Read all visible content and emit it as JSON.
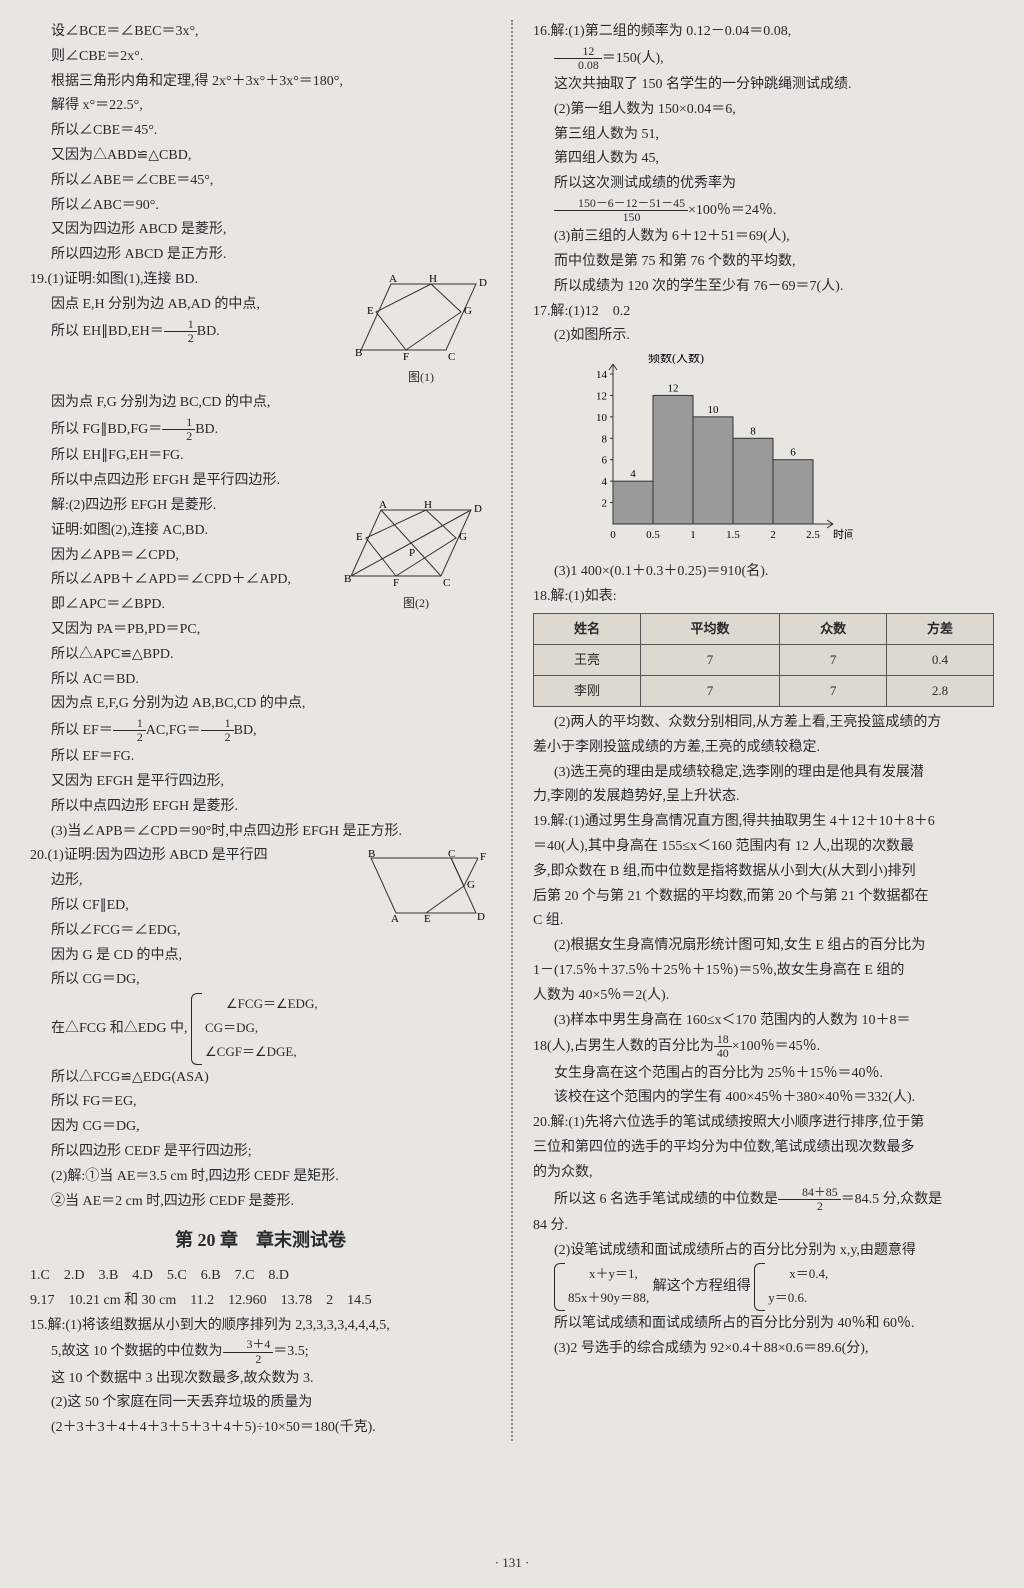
{
  "col1": {
    "p1": "设∠BCE＝∠BEC＝3x°,",
    "p2": "则∠CBE＝2x°.",
    "p3": "根据三角形内角和定理,得 2x°＋3x°＋3x°＝180°,",
    "p4": "解得 x°＝22.5°,",
    "p5": "所以∠CBE＝45°.",
    "p6": "又因为△ABD≌△CBD,",
    "p7": "所以∠ABE＝∠CBE＝45°,",
    "p8": "所以∠ABC＝90°.",
    "p9": "又因为四边形 ABCD 是菱形,",
    "p10": "所以四边形 ABCD 是正方形.",
    "q19_1a": "19.(1)证明:如图(1),连接 BD.",
    "q19_1b": "因点 E,H 分别为边 AB,AD 的中点,",
    "q19_1c_a": "所以 EH∥BD,EH＝",
    "q19_1c_b": "BD.",
    "q19_1d": "因为点 F,G 分别为边 BC,CD 的中点,",
    "q19_1e_a": "所以 FG∥BD,FG＝",
    "q19_1e_b": "BD.",
    "q19_1f": "所以 EH∥FG,EH＝FG.",
    "q19_1g": "所以中点四边形 EFGH 是平行四边形.",
    "q19_2a": "解:(2)四边形 EFGH 是菱形.",
    "q19_2b": "证明:如图(2),连接 AC,BD.",
    "q19_2c": "因为∠APB＝∠CPD,",
    "q19_2d": "所以∠APB＋∠APD＝∠CPD＋∠APD,",
    "q19_2e": "即∠APC＝∠BPD.",
    "q19_2f": "又因为 PA＝PB,PD＝PC,",
    "q19_2g": "所以△APC≌△BPD.",
    "q19_2h": "所以 AC＝BD.",
    "q19_2i": "因为点 E,F,G 分别为边 AB,BC,CD 的中点,",
    "q19_2j_a": "所以 EF＝",
    "q19_2j_b": "AC,FG＝",
    "q19_2j_c": "BD,",
    "q19_2k": "所以 EF＝FG.",
    "q19_2l": "又因为 EFGH 是平行四边形,",
    "q19_2m": "所以中点四边形 EFGH 是菱形.",
    "q19_3": "(3)当∠APB＝∠CPD＝90°时,中点四边形 EFGH 是正方形.",
    "q20_1a": "20.(1)证明:因为四边形 ABCD 是平行四",
    "q20_1b": "边形,",
    "q20_1c": "所以 CF∥ED,",
    "q20_1d": "所以∠FCG＝∠EDG,",
    "q20_1e": "因为 G 是 CD 的中点,",
    "q20_1f": "所以 CG＝DG,",
    "q20_1g": "在△FCG 和△EDG 中,",
    "q20_1g_b1": "∠FCG＝∠EDG,",
    "q20_1g_b2": "CG＝DG,",
    "q20_1g_b3": "∠CGF＝∠DGE,",
    "q20_1h": "所以△FCG≌△EDG(ASA)",
    "q20_1i": "所以 FG＝EG,",
    "q20_1j": "因为 CG＝DG,",
    "q20_1k": "所以四边形 CEDF 是平行四边形;",
    "q20_2a": "(2)解:①当 AE＝3.5 cm 时,四边形 CEDF 是矩形.",
    "q20_2b": "②当 AE＝2 cm 时,四边形 CEDF 是菱形.",
    "chapter_title": "第 20 章　章末测试卷",
    "answers1": "1.C　2.D　3.B　4.D　5.C　6.B　7.C　8.D",
    "answers2": "9.17　10.21 cm 和 30 cm　11.2　12.960　13.78　2　14.5",
    "q15_1a": "15.解:(1)将该组数据从小到大的顺序排列为 2,3,3,3,3,4,4,4,5,",
    "q15_1b_a": "5,故这 10 个数据的中位数为",
    "q15_1b_b": "＝3.5;",
    "q15_1c": "这 10 个数据中 3 出现次数最多,故众数为 3.",
    "q15_2a": "(2)这 50 个家庭在同一天丢弃垃圾的质量为",
    "q15_2b": "(2＋3＋3＋4＋4＋3＋5＋3＋4＋5)÷10×50＝180(千克).",
    "fig1_label": "图(1)",
    "fig2_label": "图(2)"
  },
  "col2": {
    "q16_1a": "16.解:(1)第二组的频率为 0.12－0.04＝0.08,",
    "q16_1b_b": "＝150(人),",
    "q16_1c": "这次共抽取了 150 名学生的一分钟跳绳测试成绩.",
    "q16_2a": "(2)第一组人数为 150×0.04＝6,",
    "q16_2b": "第三组人数为 51,",
    "q16_2c": "第四组人数为 45,",
    "q16_2d": "所以这次测试成绩的优秀率为",
    "q16_2e_b": "×100％＝24％.",
    "q16_3a": "(3)前三组的人数为 6＋12＋51＝69(人),",
    "q16_3b": "而中位数是第 75 和第 76 个数的平均数,",
    "q16_3c": "所以成绩为 120 次的学生至少有 76－69＝7(人).",
    "q17_1": "17.解:(1)12　0.2",
    "q17_2": "(2)如图所示.",
    "chart_ylabel": "频数(人数)",
    "chart_xlabel": "时间(小时)",
    "q17_3": "(3)1 400×(0.1＋0.3＋0.25)＝910(名).",
    "q18_1": "18.解:(1)如表:",
    "table": {
      "headers": [
        "姓名",
        "平均数",
        "众数",
        "方差"
      ],
      "rows": [
        [
          "王亮",
          "7",
          "7",
          "0.4"
        ],
        [
          "李刚",
          "7",
          "7",
          "2.8"
        ]
      ]
    },
    "q18_2a": "(2)两人的平均数、众数分别相同,从方差上看,王亮投篮成绩的方",
    "q18_2b": "差小于李刚投篮成绩的方差,王亮的成绩较稳定.",
    "q18_3a": "(3)选王亮的理由是成绩较稳定,选李刚的理由是他具有发展潜",
    "q18_3b": "力,李刚的发展趋势好,呈上升状态.",
    "q19_1a": "19.解:(1)通过男生身高情况直方图,得共抽取男生 4＋12＋10＋8＋6",
    "q19_1b": "＝40(人),其中身高在 155≤x＜160 范围内有 12 人,出现的次数最",
    "q19_1c": "多,即众数在 B 组,而中位数是指将数据从小到大(从大到小)排列",
    "q19_1d": "后第 20 个与第 21 个数据的平均数,而第 20 个与第 21 个数据都在",
    "q19_1e": "C 组.",
    "q19_2a": "(2)根据女生身高情况扇形统计图可知,女生 E 组占的百分比为",
    "q19_2b": "1－(17.5％＋37.5％＋25％＋15％)＝5％,故女生身高在 E 组的",
    "q19_2c": "人数为 40×5％＝2(人).",
    "q19_3a": "(3)样本中男生身高在 160≤x＜170 范围内的人数为 10＋8＝",
    "q19_3b_a": "18(人),占男生人数的百分比为",
    "q19_3b_b": "×100％＝45％.",
    "q19_3c": "女生身高在这个范围占的百分比为 25％＋15％＝40％.",
    "q19_3d": "该校在这个范围内的学生有 400×45％＋380×40％＝332(人).",
    "q20_1a": "20.解:(1)先将六位选手的笔试成绩按照大小顺序进行排序,位于第",
    "q20_1b": "三位和第四位的选手的平均分为中位数,笔试成绩出现次数最多",
    "q20_1c": "的为众数,",
    "q20_1d_a": "所以这 6 名选手笔试成绩的中位数是",
    "q20_1d_b": "＝84.5 分,众数是",
    "q20_1e": "84 分.",
    "q20_2a": "(2)设笔试成绩和面试成绩所占的百分比分别为 x,y,由题意得",
    "q20_2b_l1": "x＋y＝1,",
    "q20_2b_l2": "85x＋90y＝88,",
    "q20_2b_mid": "解这个方程组得",
    "q20_2b_r1": "x＝0.4,",
    "q20_2b_r2": "y＝0.6.",
    "q20_2c": "所以笔试成绩和面试成绩所占的百分比分别为 40％和 60％.",
    "q20_3": "(3)2 号选手的综合成绩为 92×0.4＋88×0.6＝89.6(分),",
    "chart_data": {
      "x_ticks": [
        "0",
        "0.5",
        "1",
        "1.5",
        "2",
        "2.5"
      ],
      "y_ticks": [
        2,
        4,
        6,
        8,
        10,
        12,
        14
      ],
      "bars": [
        {
          "label": "4",
          "h": 4
        },
        {
          "label": "12",
          "h": 12
        },
        {
          "label": "10",
          "h": 10
        },
        {
          "label": "8",
          "h": 8
        },
        {
          "label": "6",
          "h": 6
        }
      ]
    }
  },
  "page_number": "· 131 ·"
}
